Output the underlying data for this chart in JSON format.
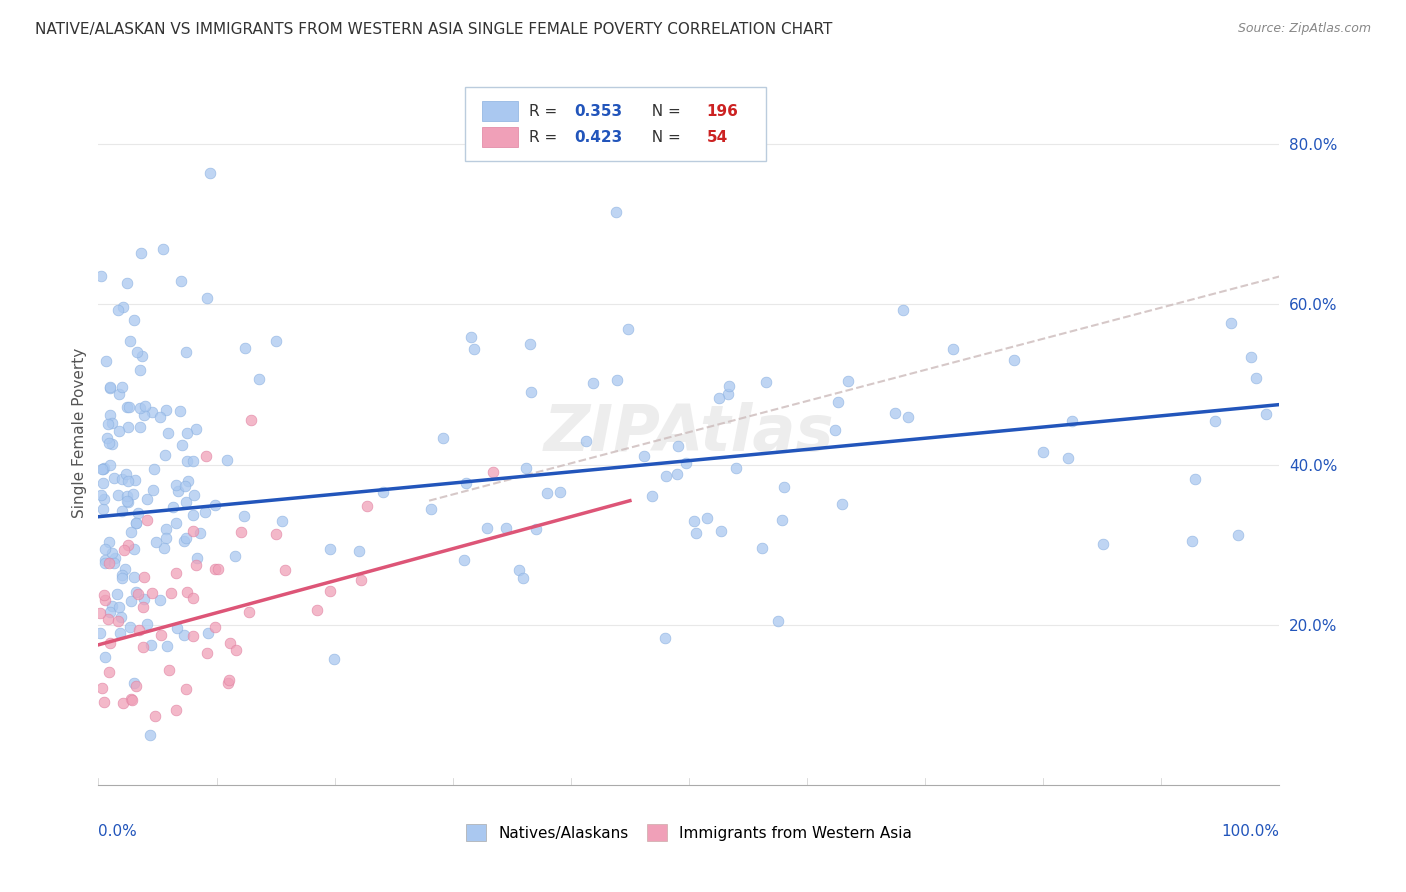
{
  "title": "NATIVE/ALASKAN VS IMMIGRANTS FROM WESTERN ASIA SINGLE FEMALE POVERTY CORRELATION CHART",
  "source": "Source: ZipAtlas.com",
  "ylabel": "Single Female Poverty",
  "xlim": [
    0.0,
    1.0
  ],
  "ylim": [
    0.0,
    0.88
  ],
  "native_R": 0.353,
  "native_N": 196,
  "immigrant_R": 0.423,
  "immigrant_N": 54,
  "native_color": "#aac8f0",
  "immigrant_color": "#f0a0b8",
  "native_line_color": "#2255bb",
  "immigrant_line_color": "#dd5577",
  "trend_line_color": "#ccbbbb",
  "background_color": "#ffffff",
  "grid_color": "#e8e8e8",
  "title_color": "#333333",
  "legend_R_color": "#2255bb",
  "legend_N_color": "#cc2222",
  "watermark": "ZIPAtlas",
  "native_line_start_x": 0.0,
  "native_line_start_y": 0.335,
  "native_line_end_x": 1.0,
  "native_line_end_y": 0.475,
  "immigrant_line_start_x": 0.0,
  "immigrant_line_start_y": 0.175,
  "immigrant_line_end_x": 0.45,
  "immigrant_line_end_y": 0.355,
  "dash_line_start_x": 0.28,
  "dash_line_start_y": 0.355,
  "dash_line_end_x": 1.0,
  "dash_line_end_y": 0.635
}
